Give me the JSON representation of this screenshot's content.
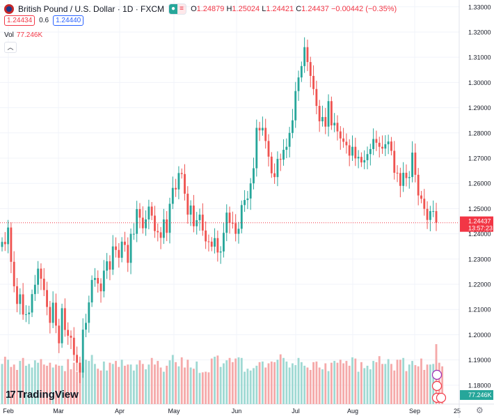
{
  "header": {
    "title": "British Pound / U.S. Dollar · 1D · FXCM",
    "open_label": "O",
    "open": "1.24879",
    "high_label": "H",
    "high": "1.25024",
    "low_label": "L",
    "low": "1.24421",
    "close_label": "C",
    "close": "1.24437",
    "change": "−0.00442 (−0.35%)"
  },
  "trade": {
    "sell": "1.24434",
    "spread": "0.6",
    "buy": "1.24440"
  },
  "volume": {
    "label": "Vol",
    "value": "77.246K"
  },
  "price_tag": {
    "price": "1.24437",
    "countdown": "13:57:23"
  },
  "brand": {
    "name": "TradingView"
  },
  "icons": {
    "symbol": "flag-icon",
    "collapse": "chevron-up-icon",
    "settings": "gear-icon",
    "lightning": "lightning-icon",
    "calendar": "calendar-icon",
    "flag_us": "us-flag-icon"
  },
  "colors": {
    "up": "#26a69a",
    "down": "#ef5350",
    "vol_up": "#9fd9d3",
    "vol_down": "#f5a9a9",
    "grid": "#f0f3fa",
    "price_tag": "#f23645"
  },
  "chart_data": {
    "type": "candlestick",
    "title": "British Pound / U.S. Dollar · 1D · FXCM",
    "y_ticks": [
      1.18,
      1.19,
      1.2,
      1.21,
      1.22,
      1.23,
      1.24,
      1.25,
      1.26,
      1.27,
      1.28,
      1.29,
      1.3,
      1.31,
      1.32,
      1.33
    ],
    "ylim": [
      1.1725,
      1.3327
    ],
    "x_ticks": [
      "Feb",
      "Mar",
      "Apr",
      "May",
      "Jun",
      "Jul",
      "Aug",
      "Sep",
      "25"
    ],
    "volume_last": "77.246K",
    "series": [
      {
        "name": "Close",
        "close": [
          1.2368,
          1.2359,
          1.2425,
          1.2289,
          1.2192,
          1.2122,
          1.216,
          1.208,
          1.2081,
          1.2088,
          1.2161,
          1.2198,
          1.2262,
          1.2222,
          1.2177,
          1.211,
          1.2047,
          1.2127,
          1.2036,
          1.1966,
          1.2105,
          1.2019,
          1.1996,
          1.1988,
          1.192,
          1.1889,
          1.185,
          1.202,
          1.2047,
          1.2128,
          1.2217,
          1.2225,
          1.2203,
          1.2172,
          1.2254,
          1.2291,
          1.2258,
          1.235,
          1.2336,
          1.2305,
          1.2369,
          1.2356,
          1.2285,
          1.24,
          1.24,
          1.2498,
          1.2464,
          1.2422,
          1.2457,
          1.2508,
          1.2472,
          1.2411,
          1.2406,
          1.2384,
          1.2457,
          1.2404,
          1.2519,
          1.2582,
          1.2576,
          1.2641,
          1.2637,
          1.2559,
          1.2476,
          1.2512,
          1.243,
          1.2454,
          1.2476,
          1.2413,
          1.237,
          1.2369,
          1.2349,
          1.2383,
          1.2326,
          1.233,
          1.2404,
          1.2484,
          1.2443,
          1.2442,
          1.24,
          1.242,
          1.2514,
          1.2534,
          1.254,
          1.26,
          1.266,
          1.282,
          1.281,
          1.282,
          1.2768,
          1.2706,
          1.264,
          1.2625,
          1.2697,
          1.2694,
          1.2733,
          1.2745,
          1.28,
          1.285,
          1.2966,
          1.302,
          1.3065,
          1.314,
          1.3081,
          1.3026,
          1.2974,
          1.2907,
          1.2846,
          1.2863,
          1.2825,
          1.2926,
          1.283,
          1.284,
          1.2806,
          1.2778,
          1.2765,
          1.2751,
          1.271,
          1.2745,
          1.2699,
          1.2705,
          1.2683,
          1.2692,
          1.2716,
          1.2736,
          1.2776,
          1.2761,
          1.2745,
          1.2738,
          1.2755,
          1.2766,
          1.2729,
          1.2642,
          1.2641,
          1.259,
          1.2642,
          1.2621,
          1.2625,
          1.2722,
          1.2634,
          1.2552,
          1.2539,
          1.2499,
          1.2455,
          1.249,
          1.249,
          1.2444
        ]
      },
      {
        "name": "Vol",
        "values": [
          0.67,
          0.79,
          0.74,
          0.62,
          0.66,
          0.57,
          0.72,
          0.77,
          0.64,
          0.67,
          0.61,
          0.73,
          0.69,
          0.75,
          0.66,
          0.64,
          0.69,
          0.61,
          0.66,
          0.64,
          0.64,
          0.55,
          0.75,
          0.58,
          0.69,
          0.54,
          0.64,
          0.61,
          0.74,
          0.72,
          0.82,
          0.67,
          0.59,
          0.56,
          0.71,
          0.56,
          0.69,
          0.67,
          0.72,
          0.62,
          0.74,
          0.64,
          0.66,
          0.66,
          0.56,
          0.66,
          0.73,
          0.67,
          0.58,
          0.66,
          0.77,
          0.66,
          0.72,
          0.61,
          0.54,
          0.64,
          0.73,
          0.82,
          0.7,
          0.63,
          0.78,
          0.61,
          0.74,
          0.61,
          0.59,
          0.71,
          0.52,
          0.53,
          0.54,
          0.53,
          0.76,
          0.79,
          0.81,
          0.62,
          0.68,
          0.73,
          0.77,
          0.7,
          0.76,
          0.78,
          0.77,
          0.54,
          0.59,
          0.56,
          0.6,
          0.64,
          0.7,
          0.71,
          0.61,
          0.68,
          0.71,
          0.7,
          0.74,
          0.83,
          0.77,
          0.71,
          0.61,
          0.68,
          0.65,
          0.77,
          0.7,
          0.64,
          0.61,
          0.57,
          0.7,
          0.71,
          0.61,
          0.58,
          0.68,
          0.55,
          0.69,
          0.72,
          0.69,
          0.74,
          0.68,
          0.72,
          0.64,
          0.78,
          0.76,
          0.54,
          0.7,
          0.6,
          0.64,
          0.58,
          0.72,
          0.7,
          0.8,
          0.67,
          0.67,
          0.75,
          0.67,
          0.56,
          0.74,
          0.74,
          0.77,
          0.55,
          0.66,
          0.72,
          0.65,
          0.63,
          0.76,
          0.57,
          0.66,
          0.66,
          0.67,
          1.0,
          0.69,
          0.63
        ]
      }
    ]
  }
}
